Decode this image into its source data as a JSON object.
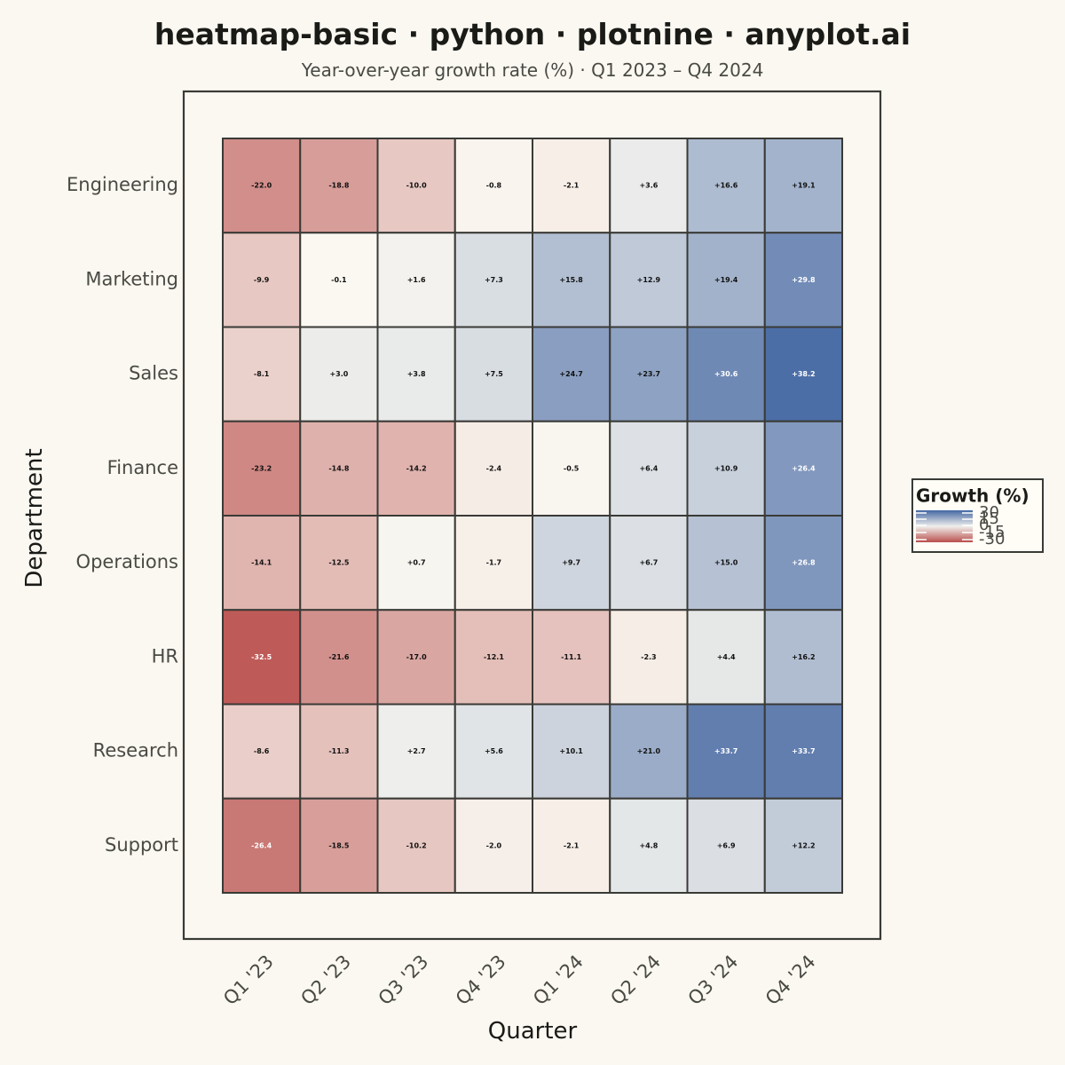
{
  "chart_data": {
    "type": "heatmap",
    "title": "heatmap-basic · python · plotnine · anyplot.ai",
    "subtitle": "Year-over-year growth rate (%) · Q1 2023 – Q4 2024",
    "xlabel": "Quarter",
    "ylabel": "Department",
    "x_categories": [
      "Q1 '23",
      "Q2 '23",
      "Q3 '23",
      "Q4 '23",
      "Q1 '24",
      "Q2 '24",
      "Q3 '24",
      "Q4 '24"
    ],
    "y_categories": [
      "Engineering",
      "Marketing",
      "Sales",
      "Finance",
      "Operations",
      "HR",
      "Research",
      "Support"
    ],
    "values": [
      [
        -22.0,
        -18.8,
        -10.0,
        -0.8,
        -2.1,
        3.6,
        16.6,
        19.1
      ],
      [
        -9.9,
        -0.1,
        1.6,
        7.3,
        15.8,
        12.9,
        19.4,
        29.8
      ],
      [
        -8.1,
        3.0,
        3.8,
        7.5,
        24.7,
        23.7,
        30.6,
        38.2
      ],
      [
        -23.2,
        -14.8,
        -14.2,
        -2.4,
        -0.5,
        6.4,
        10.9,
        26.4
      ],
      [
        -14.1,
        -12.5,
        0.7,
        -1.7,
        9.7,
        6.7,
        15.0,
        26.8
      ],
      [
        -32.5,
        -21.6,
        -17.0,
        -12.1,
        -11.1,
        -2.3,
        4.4,
        16.2
      ],
      [
        -8.6,
        -11.3,
        2.7,
        5.6,
        10.1,
        21.0,
        33.7,
        33.7
      ],
      [
        -26.4,
        -18.5,
        -10.2,
        -2.0,
        -2.1,
        4.8,
        6.9,
        12.2
      ]
    ],
    "labels": [
      [
        "-22.0",
        "-18.8",
        "-10.0",
        "-0.8",
        "-2.1",
        "+3.6",
        "+16.6",
        "+19.1"
      ],
      [
        "-9.9",
        "-0.1",
        "+1.6",
        "+7.3",
        "+15.8",
        "+12.9",
        "+19.4",
        "+29.8"
      ],
      [
        "-8.1",
        "+3.0",
        "+3.8",
        "+7.5",
        "+24.7",
        "+23.7",
        "+30.6",
        "+38.2"
      ],
      [
        "-23.2",
        "-14.8",
        "-14.2",
        "-2.4",
        "-0.5",
        "+6.4",
        "+10.9",
        "+26.4"
      ],
      [
        "-14.1",
        "-12.5",
        "+0.7",
        "-1.7",
        "+9.7",
        "+6.7",
        "+15.0",
        "+26.8"
      ],
      [
        "-32.5",
        "-21.6",
        "-17.0",
        "-12.1",
        "-11.1",
        "-2.3",
        "+4.4",
        "+16.2"
      ],
      [
        "-8.6",
        "-11.3",
        "+2.7",
        "+5.6",
        "+10.1",
        "+21.0",
        "+33.7",
        "+33.7"
      ],
      [
        "-26.4",
        "-18.5",
        "-10.2",
        "-2.0",
        "-2.1",
        "+4.8",
        "+6.9",
        "+12.2"
      ]
    ],
    "color_scale": {
      "low": "#B94F4D",
      "mid": "#FAF8F1",
      "high": "#4467A3",
      "domain": [
        -35,
        0,
        40
      ]
    },
    "legend": {
      "title": "Growth (%)",
      "ticks": [
        "30",
        "15",
        "0",
        "-15",
        "-30"
      ],
      "placement": "right"
    },
    "grid": false
  }
}
